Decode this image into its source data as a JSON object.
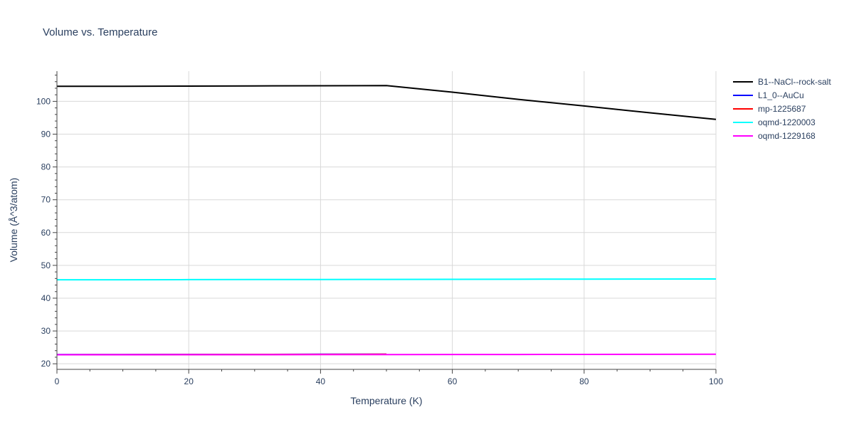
{
  "chart_data": {
    "type": "line",
    "title": "Volume vs. Temperature",
    "xlabel": "Temperature (K)",
    "ylabel": "Volume (Å^3/atom)",
    "xlim": [
      0,
      100
    ],
    "ylim": [
      18.3,
      109.2
    ],
    "x_ticks": [
      0,
      20,
      40,
      60,
      80,
      100
    ],
    "y_ticks": [
      20,
      30,
      40,
      50,
      60,
      70,
      80,
      90,
      100
    ],
    "grid": true,
    "legend_position": "top-right",
    "series": [
      {
        "name": "B1--NaCl--rock-salt",
        "color": "#000000",
        "x": [
          0,
          10,
          20,
          30,
          40,
          50,
          60,
          70,
          80,
          90,
          100
        ],
        "y": [
          104.6,
          104.6,
          104.65,
          104.7,
          104.75,
          104.8,
          102.8,
          100.6,
          98.6,
          96.5,
          94.5
        ]
      },
      {
        "name": "L1_0--AuCu",
        "color": "#0000ff",
        "x": [
          0,
          10,
          20,
          30,
          40,
          50
        ],
        "y": [
          22.8,
          22.8,
          22.85,
          22.85,
          22.9,
          22.9
        ]
      },
      {
        "name": "mp-1225687",
        "color": "#ff0000",
        "x": [
          0,
          10,
          20,
          30,
          40,
          50
        ],
        "y": [
          22.75,
          22.78,
          22.8,
          22.83,
          22.86,
          22.9
        ]
      },
      {
        "name": "oqmd-1220003",
        "color": "#00ffff",
        "x": [
          0,
          10,
          20,
          30,
          40,
          50,
          60,
          70,
          80,
          90,
          100
        ],
        "y": [
          45.6,
          45.62,
          45.65,
          45.68,
          45.7,
          45.72,
          45.75,
          45.78,
          45.8,
          45.82,
          45.85
        ]
      },
      {
        "name": "oqmd-1229168",
        "color": "#ff00ff",
        "x": [
          0,
          10,
          20,
          30,
          40,
          50,
          60,
          70,
          80,
          90,
          100
        ],
        "y": [
          22.75,
          22.76,
          22.77,
          22.78,
          22.79,
          22.8,
          22.82,
          22.84,
          22.86,
          22.88,
          22.9
        ]
      }
    ]
  }
}
